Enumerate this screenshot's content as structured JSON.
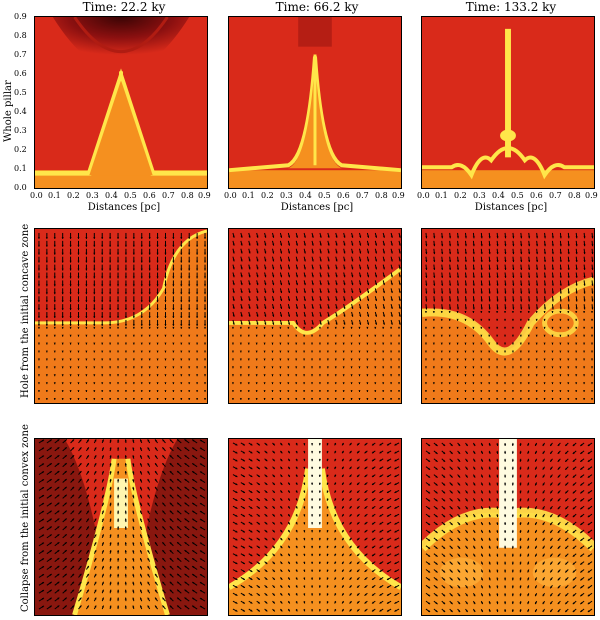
{
  "columns": [
    {
      "title": "Time: 22.2 ky"
    },
    {
      "title": "Time: 66.2 ky"
    },
    {
      "title": "Time: 133.2 ky"
    }
  ],
  "rows": [
    {
      "label": "Whole pillar"
    },
    {
      "label": "Hole from the initial concave zone"
    },
    {
      "label": "Collapse from the initial convex zone"
    }
  ],
  "xlabel": "Distances [pc]",
  "x_ticks": [
    "0.0",
    "0.1",
    "0.2",
    "0.3",
    "0.4",
    "0.5",
    "0.6",
    "0.7",
    "0.8",
    "0.9"
  ],
  "y_ticks": [
    "0.9",
    "0.8",
    "0.7",
    "0.6",
    "0.5",
    "0.4",
    "0.3",
    "0.2",
    "0.1",
    "0.0"
  ],
  "colors": {
    "background_red": "#d92a1a",
    "dark_red": "#7a0d0d",
    "ambient_orange": "#f07a1a",
    "dense_orange": "#f5901f",
    "shell_yellow": "#ffe64a",
    "hot_white": "#fffbe0"
  }
}
